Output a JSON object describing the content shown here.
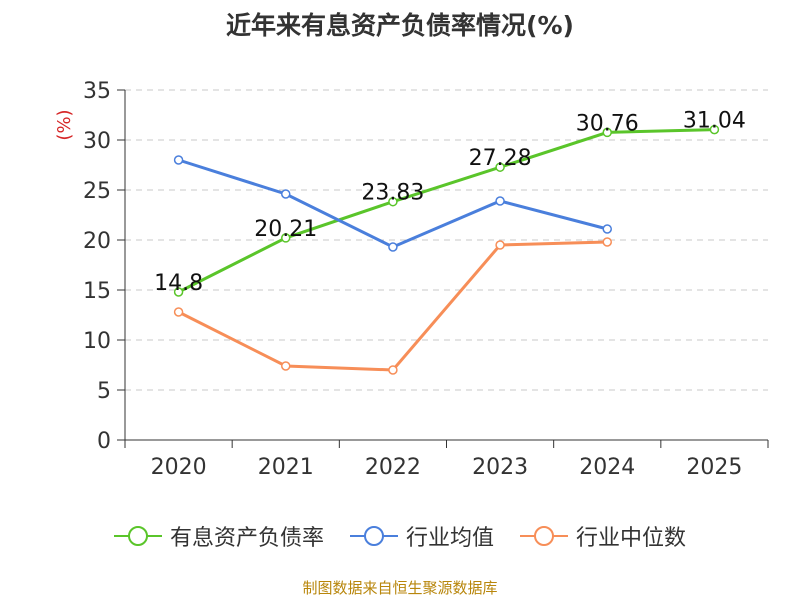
{
  "chart_data": {
    "type": "line",
    "title": "近年来有息资产负债率情况(%)",
    "ylabel": "(%)",
    "categories": [
      "2020",
      "2021",
      "2022",
      "2023",
      "2024",
      "2025"
    ],
    "ylim": [
      0,
      35
    ],
    "yticks": [
      0,
      5,
      10,
      15,
      20,
      25,
      30,
      35
    ],
    "grid": true,
    "legend_position": "bottom",
    "series": [
      {
        "name": "有息资产负债率",
        "color": "#5ac52a",
        "values": [
          14.8,
          20.21,
          23.83,
          27.28,
          30.76,
          31.04
        ],
        "labels": [
          "14.8",
          "20.21",
          "23.83",
          "27.28",
          "30.76",
          "31.04"
        ]
      },
      {
        "name": "行业均值",
        "color": "#4a7fdc",
        "values": [
          28.0,
          24.6,
          19.3,
          23.9,
          21.1,
          null
        ]
      },
      {
        "name": "行业中位数",
        "color": "#f78e58",
        "values": [
          12.8,
          7.4,
          7.0,
          19.5,
          19.8,
          null
        ]
      }
    ]
  },
  "source_text": "制图数据来自恒生聚源数据库"
}
